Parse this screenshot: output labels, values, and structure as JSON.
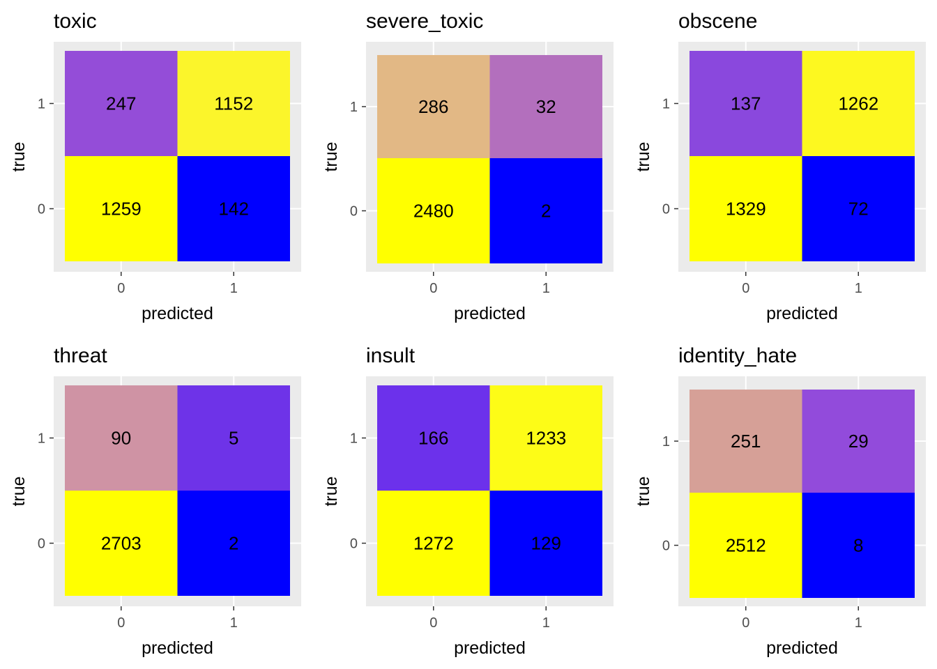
{
  "chart_data": [
    {
      "type": "heatmap",
      "title": "toxic",
      "xlabel": "predicted",
      "ylabel": "true",
      "x_ticks": [
        "0",
        "1"
      ],
      "y_ticks": [
        "0",
        "1"
      ],
      "cells": [
        {
          "true": 1,
          "predicted": 0,
          "value": 247,
          "color": "#944dd8"
        },
        {
          "true": 1,
          "predicted": 1,
          "value": 1152,
          "color": "#fbf52b"
        },
        {
          "true": 0,
          "predicted": 0,
          "value": 1259,
          "color": "#ffff00"
        },
        {
          "true": 0,
          "predicted": 1,
          "value": 142,
          "color": "#0000ff"
        }
      ]
    },
    {
      "type": "heatmap",
      "title": "severe_toxic",
      "xlabel": "predicted",
      "ylabel": "true",
      "x_ticks": [
        "0",
        "1"
      ],
      "y_ticks": [
        "0",
        "1"
      ],
      "cells": [
        {
          "true": 1,
          "predicted": 0,
          "value": 286,
          "color": "#e2b885"
        },
        {
          "true": 1,
          "predicted": 1,
          "value": 32,
          "color": "#b36fbd"
        },
        {
          "true": 0,
          "predicted": 0,
          "value": 2480,
          "color": "#ffff00"
        },
        {
          "true": 0,
          "predicted": 1,
          "value": 2,
          "color": "#0000ff"
        }
      ]
    },
    {
      "type": "heatmap",
      "title": "obscene",
      "xlabel": "predicted",
      "ylabel": "true",
      "x_ticks": [
        "0",
        "1"
      ],
      "y_ticks": [
        "0",
        "1"
      ],
      "cells": [
        {
          "true": 1,
          "predicted": 0,
          "value": 137,
          "color": "#8a48dd"
        },
        {
          "true": 1,
          "predicted": 1,
          "value": 1262,
          "color": "#fdf820"
        },
        {
          "true": 0,
          "predicted": 0,
          "value": 1329,
          "color": "#ffff00"
        },
        {
          "true": 0,
          "predicted": 1,
          "value": 72,
          "color": "#0000ff"
        }
      ]
    },
    {
      "type": "heatmap",
      "title": "threat",
      "xlabel": "predicted",
      "ylabel": "true",
      "x_ticks": [
        "0",
        "1"
      ],
      "y_ticks": [
        "0",
        "1"
      ],
      "cells": [
        {
          "true": 1,
          "predicted": 0,
          "value": 90,
          "color": "#cf93a4"
        },
        {
          "true": 1,
          "predicted": 1,
          "value": 5,
          "color": "#6e33e8"
        },
        {
          "true": 0,
          "predicted": 0,
          "value": 2703,
          "color": "#ffff00"
        },
        {
          "true": 0,
          "predicted": 1,
          "value": 2,
          "color": "#0000ff"
        }
      ]
    },
    {
      "type": "heatmap",
      "title": "insult",
      "xlabel": "predicted",
      "ylabel": "true",
      "x_ticks": [
        "0",
        "1"
      ],
      "y_ticks": [
        "0",
        "1"
      ],
      "cells": [
        {
          "true": 1,
          "predicted": 0,
          "value": 166,
          "color": "#6c31eb"
        },
        {
          "true": 1,
          "predicted": 1,
          "value": 1233,
          "color": "#fdfc17"
        },
        {
          "true": 0,
          "predicted": 0,
          "value": 1272,
          "color": "#ffff00"
        },
        {
          "true": 0,
          "predicted": 1,
          "value": 129,
          "color": "#0000ff"
        }
      ]
    },
    {
      "type": "heatmap",
      "title": "identity_hate",
      "xlabel": "predicted",
      "ylabel": "true",
      "x_ticks": [
        "0",
        "1"
      ],
      "y_ticks": [
        "0",
        "1"
      ],
      "cells": [
        {
          "true": 1,
          "predicted": 0,
          "value": 251,
          "color": "#d6a097"
        },
        {
          "true": 1,
          "predicted": 1,
          "value": 29,
          "color": "#924bdb"
        },
        {
          "true": 0,
          "predicted": 0,
          "value": 2512,
          "color": "#ffff00"
        },
        {
          "true": 0,
          "predicted": 1,
          "value": 8,
          "color": "#0000ff"
        }
      ]
    }
  ]
}
